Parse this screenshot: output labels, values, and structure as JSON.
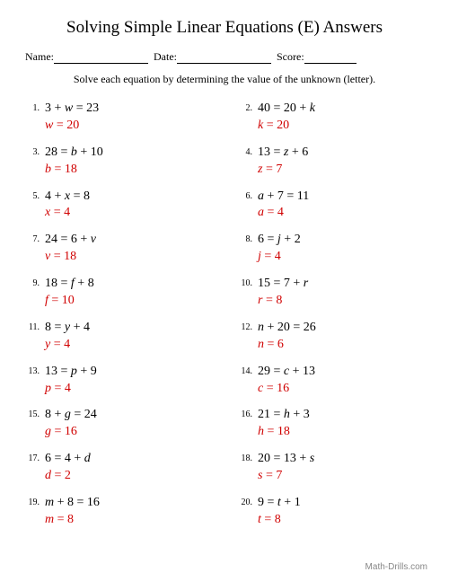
{
  "title": "Solving Simple Linear Equations (E) Answers",
  "header": {
    "name_label": "Name:",
    "date_label": "Date:",
    "score_label": "Score:"
  },
  "instruction": "Solve each equation by determining the value of the unknown (letter).",
  "answer_color": "#d00000",
  "problems": [
    {
      "n": "1.",
      "eq_pre": "3 + ",
      "eq_var": "w",
      "eq_post": " = 23",
      "ans_var": "w",
      "ans_val": " = 20"
    },
    {
      "n": "3.",
      "eq_pre": "28 = ",
      "eq_var": "b",
      "eq_post": " + 10",
      "ans_var": "b",
      "ans_val": " = 18"
    },
    {
      "n": "5.",
      "eq_pre": "4 + ",
      "eq_var": "x",
      "eq_post": " = 8",
      "ans_var": "x",
      "ans_val": " = 4"
    },
    {
      "n": "7.",
      "eq_pre": "24 = 6 + ",
      "eq_var": "v",
      "eq_post": "",
      "ans_var": "v",
      "ans_val": " = 18"
    },
    {
      "n": "9.",
      "eq_pre": "18 = ",
      "eq_var": "f",
      "eq_post": " + 8",
      "ans_var": "f",
      "ans_val": " = 10"
    },
    {
      "n": "11.",
      "eq_pre": "8 = ",
      "eq_var": "y",
      "eq_post": " + 4",
      "ans_var": "y",
      "ans_val": " = 4"
    },
    {
      "n": "13.",
      "eq_pre": "13 = ",
      "eq_var": "p",
      "eq_post": " + 9",
      "ans_var": "p",
      "ans_val": " = 4"
    },
    {
      "n": "15.",
      "eq_pre": "8 + ",
      "eq_var": "g",
      "eq_post": " = 24",
      "ans_var": "g",
      "ans_val": " = 16"
    },
    {
      "n": "17.",
      "eq_pre": "6 = 4 + ",
      "eq_var": "d",
      "eq_post": "",
      "ans_var": "d",
      "ans_val": " = 2"
    },
    {
      "n": "19.",
      "eq_pre": "",
      "eq_var": "m",
      "eq_post": " + 8 = 16",
      "ans_var": "m",
      "ans_val": " = 8"
    },
    {
      "n": "2.",
      "eq_pre": "40 = 20 + ",
      "eq_var": "k",
      "eq_post": "",
      "ans_var": "k",
      "ans_val": " = 20"
    },
    {
      "n": "4.",
      "eq_pre": "13 = ",
      "eq_var": "z",
      "eq_post": " + 6",
      "ans_var": "z",
      "ans_val": " = 7"
    },
    {
      "n": "6.",
      "eq_pre": "",
      "eq_var": "a",
      "eq_post": " + 7 = 11",
      "ans_var": "a",
      "ans_val": " = 4"
    },
    {
      "n": "8.",
      "eq_pre": "6 = ",
      "eq_var": "j",
      "eq_post": " + 2",
      "ans_var": "j",
      "ans_val": " = 4"
    },
    {
      "n": "10.",
      "eq_pre": "15 = 7 + ",
      "eq_var": "r",
      "eq_post": "",
      "ans_var": "r",
      "ans_val": " = 8"
    },
    {
      "n": "12.",
      "eq_pre": "",
      "eq_var": "n",
      "eq_post": " + 20 = 26",
      "ans_var": "n",
      "ans_val": " = 6"
    },
    {
      "n": "14.",
      "eq_pre": "29 = ",
      "eq_var": "c",
      "eq_post": " + 13",
      "ans_var": "c",
      "ans_val": " = 16"
    },
    {
      "n": "16.",
      "eq_pre": "21 = ",
      "eq_var": "h",
      "eq_post": " + 3",
      "ans_var": "h",
      "ans_val": " = 18"
    },
    {
      "n": "18.",
      "eq_pre": "20 = 13 + ",
      "eq_var": "s",
      "eq_post": "",
      "ans_var": "s",
      "ans_val": " = 7"
    },
    {
      "n": "20.",
      "eq_pre": "9 = ",
      "eq_var": "t",
      "eq_post": " + 1",
      "ans_var": "t",
      "ans_val": " = 8"
    }
  ],
  "footer": "Math-Drills.com"
}
